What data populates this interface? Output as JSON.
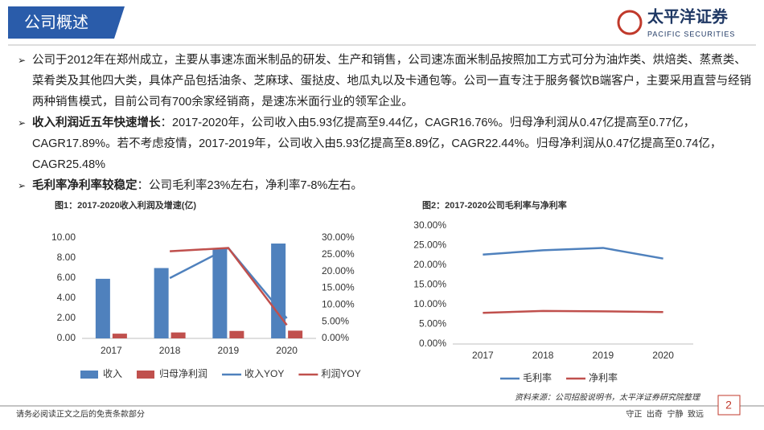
{
  "header": {
    "title": "公司概述",
    "logo_name": "太平洋证券",
    "logo_sub": "PACIFIC SECURITIES"
  },
  "bullets": [
    {
      "text": "公司于2012年在郑州成立，主要从事速冻面米制品的研发、生产和销售，公司速冻面米制品按照加工方式可分为油炸类、烘焙类、蒸煮类、菜肴类及其他四大类，具体产品包括油条、芝麻球、蛋挞皮、地瓜丸以及卡通包等。公司一直专注于服务餐饮B端客户，主要采用直营与经销两种销售模式，目前公司有700余家经销商，是速冻米面行业的领军企业。"
    },
    {
      "bold": "收入利润近五年快速增长",
      "text": "：2017-2020年，公司收入由5.93亿提高至9.44亿，CAGR16.76%。归母净利润从0.47亿提高至0.77亿，CAGR17.89%。若不考虑疫情，2017-2019年，公司收入由5.93亿提高至8.89亿，CAGR22.44%。归母净利润从0.47亿提高至0.74亿，CAGR25.48%"
    },
    {
      "bold": "毛利率净利率较稳定",
      "text": "：公司毛利率23%左右，净利率7-8%左右。"
    }
  ],
  "chart_data": [
    {
      "type": "combo",
      "title": "图1：2017-2020收入利润及增速(亿)",
      "categories": [
        "2017",
        "2018",
        "2019",
        "2020"
      ],
      "series": [
        {
          "name": "收入",
          "type": "bar",
          "color": "#4f81bd",
          "values": [
            5.93,
            7.0,
            8.89,
            9.44
          ]
        },
        {
          "name": "归母净利润",
          "type": "bar",
          "color": "#c0504d",
          "values": [
            0.47,
            0.59,
            0.74,
            0.77
          ]
        },
        {
          "name": "收入YOY",
          "type": "line",
          "axis": "y2",
          "color": "#4f81bd",
          "values": [
            null,
            18,
            27,
            6
          ]
        },
        {
          "name": "利润YOY",
          "type": "line",
          "axis": "y2",
          "color": "#c0504d",
          "values": [
            null,
            26,
            27,
            4
          ]
        }
      ],
      "ylim": [
        0,
        10
      ],
      "yticks": [
        {
          "value": 0,
          "label": "0.00"
        },
        {
          "value": 2,
          "label": "2.00"
        },
        {
          "value": 4,
          "label": "4.00"
        },
        {
          "value": 6,
          "label": "6.00"
        },
        {
          "value": 8,
          "label": "8.00"
        },
        {
          "value": 10,
          "label": "10.00"
        }
      ],
      "y2lim": [
        0,
        30
      ],
      "y2ticks": [
        {
          "value": 0,
          "label": "0.00%"
        },
        {
          "value": 5,
          "label": "5.00%"
        },
        {
          "value": 10,
          "label": "10.00%"
        },
        {
          "value": 15,
          "label": "15.00%"
        },
        {
          "value": 20,
          "label": "20.00%"
        },
        {
          "value": 25,
          "label": "25.00%"
        },
        {
          "value": 30,
          "label": "30.00%"
        }
      ],
      "grid": false,
      "legend": "bottom"
    },
    {
      "type": "line",
      "title": "图2：2017-2020公司毛利率与净利率",
      "categories": [
        "2017",
        "2018",
        "2019",
        "2020"
      ],
      "series": [
        {
          "name": "毛利率",
          "color": "#4f81bd",
          "values": [
            22.7,
            23.8,
            24.4,
            21.7
          ]
        },
        {
          "name": "净利率",
          "color": "#c0504d",
          "values": [
            7.9,
            8.4,
            8.3,
            8.1
          ]
        }
      ],
      "ylim": [
        0,
        30
      ],
      "yticks": [
        {
          "value": 0,
          "label": "0.00%"
        },
        {
          "value": 5,
          "label": "5.00%"
        },
        {
          "value": 10,
          "label": "10.00%"
        },
        {
          "value": 15,
          "label": "15.00%"
        },
        {
          "value": 20,
          "label": "20.00%"
        },
        {
          "value": 25,
          "label": "25.00%"
        },
        {
          "value": 30,
          "label": "30.00%"
        }
      ],
      "grid": false,
      "legend": "bottom"
    }
  ],
  "source": "资料来源：公司招股说明书，太平洋证券研究院整理",
  "footer": {
    "left": "请务必阅读正文之后的免责条款部分",
    "right": "守正  出奇  宁静  致远"
  },
  "page_number": "2"
}
